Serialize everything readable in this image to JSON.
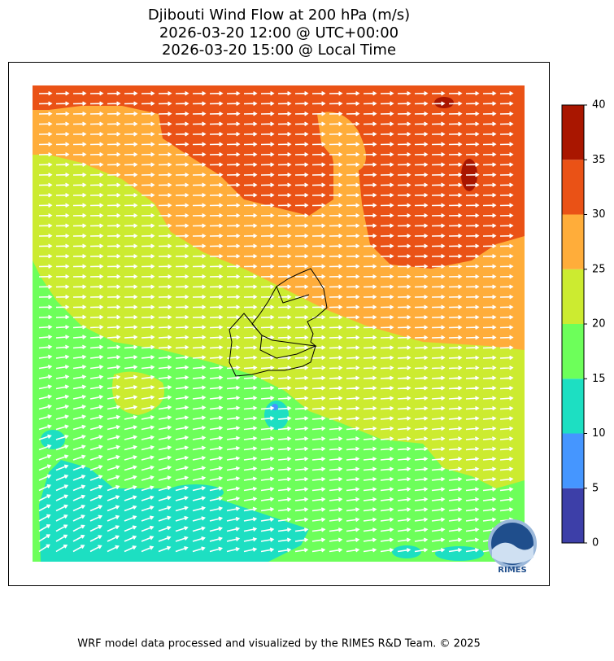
{
  "title": [
    "Djibouti Wind Flow at 200 hPa (m/s)",
    "2026-03-20 12:00 @ UTC+00:00",
    "2026-03-20 15:00 @ Local Time"
  ],
  "colorbar": {
    "ticks": [
      0,
      5,
      10,
      15,
      20,
      25,
      30,
      35,
      40
    ],
    "colors": [
      "#3d3fa8",
      "#4596ff",
      "#1ddfc2",
      "#6dff5a",
      "#cceb30",
      "#ffad3a",
      "#ea5216",
      "#a91600"
    ]
  },
  "logo": "RIMES",
  "footer": "WRF model data processed and visualized by the RIMES R&D Team. © 2025"
}
